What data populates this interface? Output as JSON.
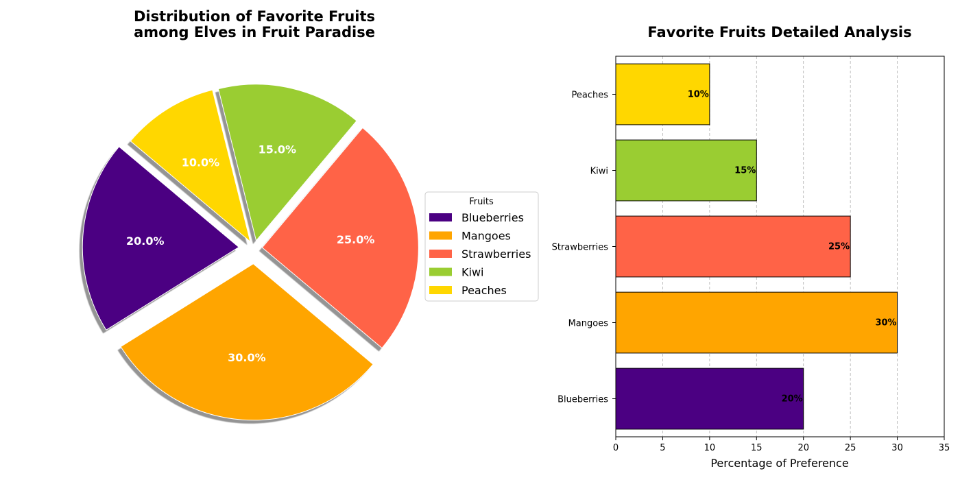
{
  "chart_data": [
    {
      "type": "pie",
      "title": [
        "Distribution of Favorite Fruits",
        "among Elves in Fruit Paradise"
      ],
      "categories": [
        "Blueberries",
        "Mangoes",
        "Strawberries",
        "Kiwi",
        "Peaches"
      ],
      "values": [
        20,
        30,
        25,
        15,
        10
      ],
      "labels": [
        "20.0%",
        "30.0%",
        "25.0%",
        "15.0%",
        "10.0%"
      ],
      "colors": [
        "#4B0082",
        "#FFA500",
        "#FF6347",
        "#9ACD32",
        "#FFD700"
      ],
      "explode": [
        0.1,
        0.1,
        0.05,
        0.05,
        0.05
      ],
      "shadow": true,
      "legend": {
        "title": "Fruits",
        "placement": "right"
      }
    },
    {
      "type": "bar",
      "orientation": "horizontal",
      "title": "Favorite Fruits Detailed Analysis",
      "categories": [
        "Blueberries",
        "Mangoes",
        "Strawberries",
        "Kiwi",
        "Peaches"
      ],
      "values": [
        20,
        30,
        25,
        15,
        10
      ],
      "labels": [
        "20%",
        "30%",
        "25%",
        "15%",
        "10%"
      ],
      "colors": [
        "#4B0082",
        "#FFA500",
        "#FF6347",
        "#9ACD32",
        "#FFD700"
      ],
      "xlabel": "Percentage of Preference",
      "ylabel": "",
      "xlim": [
        0,
        35
      ],
      "xticks": [
        0,
        5,
        10,
        15,
        20,
        25,
        30,
        35
      ],
      "grid": "x-dashed"
    }
  ]
}
